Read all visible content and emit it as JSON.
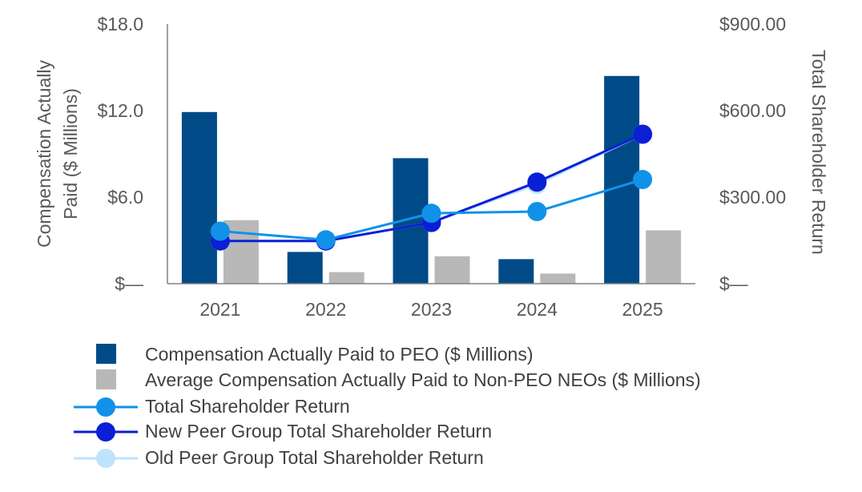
{
  "chart_data": {
    "type": "bar+line",
    "categories": [
      "2021",
      "2022",
      "2023",
      "2024",
      "2025"
    ],
    "left_axis": {
      "title_line1": "Compensation Actually",
      "title_line2": "Paid ($ Millions)",
      "ylim": [
        0,
        18
      ],
      "ticks": [
        0,
        6,
        12,
        18
      ],
      "tick_labels": [
        "$—",
        "$6.0",
        "$12.0",
        "$18.0"
      ]
    },
    "right_axis": {
      "title": "Total Shareholder Return",
      "ylim": [
        0,
        900
      ],
      "ticks": [
        0,
        300,
        600,
        900
      ],
      "tick_labels": [
        "$—",
        "$300.00",
        "$600.00",
        "$900.00"
      ]
    },
    "bar_series": [
      {
        "name": "Compensation Actually Paid to PEO ($ Millions)",
        "color": "#004b87",
        "values": [
          11.9,
          2.2,
          8.7,
          1.7,
          14.4
        ]
      },
      {
        "name": "Average Compensation Actually Paid to Non-PEO NEOs ($ Millions)",
        "color": "#b8b8b8",
        "values": [
          4.4,
          0.8,
          1.9,
          0.7,
          3.7
        ]
      }
    ],
    "line_series": [
      {
        "name": "Total Shareholder Return",
        "color": "#1192e8",
        "values": [
          182,
          152,
          244,
          250,
          361
        ]
      },
      {
        "name": "New Peer Group Total Shareholder Return",
        "color": "#0a1fd6",
        "values": [
          148,
          148,
          212,
          352,
          518
        ]
      },
      {
        "name": "Old Peer Group Total Shareholder Return",
        "color": "#bfe3fb",
        "values": [
          148,
          148,
          212,
          344,
          518
        ]
      }
    ]
  }
}
